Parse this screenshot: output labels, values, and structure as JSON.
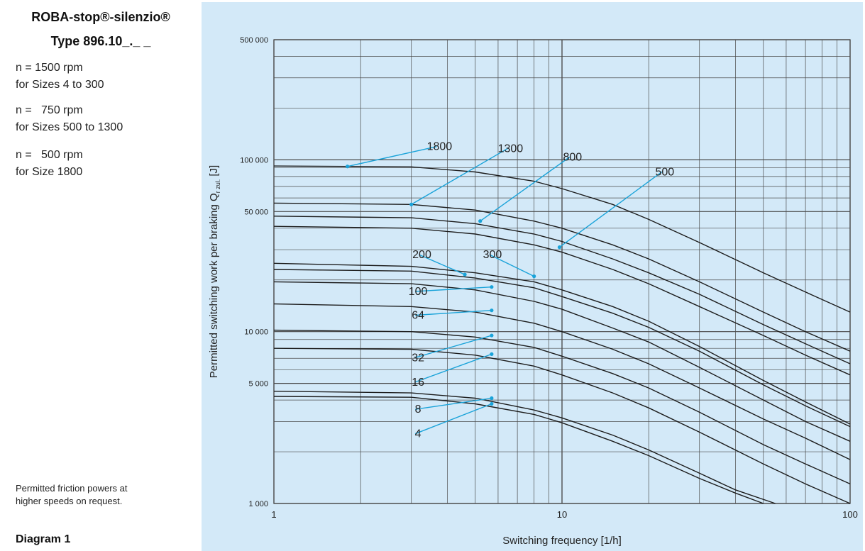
{
  "sidebar": {
    "title": "ROBA-stop®-silenzio®",
    "subtitle": "Type 896.10_._ _",
    "speed_notes": [
      {
        "speed": "n = 1500 rpm",
        "sizes": "for Sizes 4 to 300"
      },
      {
        "speed": "n =   750 rpm",
        "sizes": "for Sizes 500 to 1300"
      },
      {
        "speed": "n =   500 rpm",
        "sizes": "for Size 1800"
      }
    ],
    "note_line1": "Permitted friction powers at",
    "note_line2": "higher speeds on request.",
    "diagram_label": "Diagram 1"
  },
  "colors": {
    "background": "#d3e9f8",
    "grid": "#4a4a4a",
    "curve": "#1c1c1c",
    "leader": "#1aa3d9"
  },
  "chart_data": {
    "type": "line",
    "xscale": "log",
    "yscale": "log",
    "xlim": [
      1,
      100
    ],
    "ylim": [
      1000,
      500000
    ],
    "xlabel": "Switching frequency [1/h]",
    "ylabel": "Permitted switching work per braking Q",
    "ylabel_sub": "r zul.",
    "ylabel_unit": " [J]",
    "x_ticks": [
      {
        "v": 1,
        "label": "1"
      },
      {
        "v": 10,
        "label": "10"
      },
      {
        "v": 100,
        "label": "100"
      }
    ],
    "y_ticks": [
      {
        "v": 500000,
        "label": "500 000"
      },
      {
        "v": 100000,
        "label": "100 000"
      },
      {
        "v": 50000,
        "label": "50 000"
      },
      {
        "v": 10000,
        "label": "10 000"
      },
      {
        "v": 5000,
        "label": "5 000"
      },
      {
        "v": 1000,
        "label": "1 000"
      }
    ],
    "grid": true,
    "series": [
      {
        "name": "1800",
        "x": [
          1,
          3,
          5,
          8,
          10,
          15,
          20,
          30,
          50,
          70,
          100
        ],
        "y": [
          92000,
          91000,
          85000,
          75000,
          68000,
          55000,
          45000,
          33000,
          22000,
          17000,
          13000
        ]
      },
      {
        "name": "1300",
        "x": [
          1,
          3,
          5,
          8,
          10,
          15,
          20,
          30,
          50,
          70,
          100
        ],
        "y": [
          56000,
          55000,
          51000,
          44000,
          40000,
          32000,
          26500,
          19500,
          13000,
          10000,
          7700
        ]
      },
      {
        "name": "800",
        "x": [
          1,
          3,
          5,
          8,
          10,
          15,
          20,
          30,
          50,
          70,
          100
        ],
        "y": [
          47000,
          46000,
          42500,
          37000,
          33500,
          26500,
          22000,
          16500,
          11000,
          8500,
          6500
        ]
      },
      {
        "name": "500",
        "x": [
          1,
          3,
          5,
          8,
          10,
          15,
          20,
          30,
          50,
          70,
          100
        ],
        "y": [
          41000,
          40000,
          37000,
          32000,
          29000,
          23000,
          19000,
          14000,
          9500,
          7300,
          5600
        ]
      },
      {
        "name": "300",
        "x": [
          1,
          3,
          5,
          8,
          10,
          15,
          20,
          30,
          50,
          70,
          100
        ],
        "y": [
          25000,
          24000,
          22000,
          19500,
          17500,
          14000,
          11500,
          8200,
          5200,
          3900,
          2900
        ]
      },
      {
        "name": "200",
        "x": [
          1,
          3,
          5,
          8,
          10,
          15,
          20,
          30,
          50,
          70,
          100
        ],
        "y": [
          23000,
          22500,
          20500,
          18000,
          16000,
          12800,
          10600,
          7700,
          4900,
          3700,
          2800
        ]
      },
      {
        "name": "100",
        "x": [
          1,
          3,
          5,
          8,
          10,
          15,
          20,
          30,
          50,
          70,
          100
        ],
        "y": [
          19500,
          19000,
          17500,
          15000,
          13500,
          10500,
          8700,
          6200,
          4000,
          3000,
          2300
        ]
      },
      {
        "name": "64",
        "x": [
          1,
          3,
          5,
          8,
          10,
          15,
          20,
          30,
          50,
          70,
          100
        ],
        "y": [
          14500,
          14000,
          13000,
          11200,
          10000,
          7900,
          6500,
          4700,
          3100,
          2400,
          1800
        ]
      },
      {
        "name": "32",
        "x": [
          1,
          3,
          5,
          8,
          10,
          15,
          20,
          30,
          50,
          70,
          100
        ],
        "y": [
          10200,
          10000,
          9300,
          8100,
          7200,
          5700,
          4700,
          3400,
          2200,
          1700,
          1300
        ]
      },
      {
        "name": "16",
        "x": [
          1,
          3,
          5,
          8,
          10,
          15,
          20,
          30,
          50,
          70,
          100
        ],
        "y": [
          8000,
          7900,
          7300,
          6300,
          5600,
          4400,
          3600,
          2600,
          1700,
          1300,
          1000
        ]
      },
      {
        "name": "8",
        "x": [
          1,
          3,
          5,
          8,
          10,
          15,
          20,
          30,
          40,
          55
        ],
        "y": [
          4500,
          4400,
          4100,
          3500,
          3150,
          2500,
          2050,
          1500,
          1200,
          1000
        ]
      },
      {
        "name": "4",
        "x": [
          1,
          3,
          5,
          8,
          10,
          15,
          20,
          30,
          40,
          50
        ],
        "y": [
          4200,
          4150,
          3800,
          3300,
          2950,
          2300,
          1900,
          1400,
          1150,
          1000
        ]
      }
    ],
    "annotations": [
      {
        "label": "1800",
        "point_x": 1.8,
        "point_y": 91500,
        "text_x": 3.8,
        "text_y": 115000
      },
      {
        "label": "1300",
        "point_x": 3.0,
        "point_y": 55000,
        "text_x": 6.7,
        "text_y": 112000
      },
      {
        "label": "800",
        "point_x": 5.2,
        "point_y": 44000,
        "text_x": 11.0,
        "text_y": 100000
      },
      {
        "label": "500",
        "point_x": 9.8,
        "point_y": 31000,
        "text_x": 23.0,
        "text_y": 82000
      },
      {
        "label": "200",
        "point_x": 4.6,
        "point_y": 21500,
        "text_x": 3.3,
        "text_y": 27000
      },
      {
        "label": "300",
        "point_x": 8.0,
        "point_y": 21000,
        "text_x": 5.8,
        "text_y": 27000
      },
      {
        "label": "100",
        "point_x": 5.7,
        "point_y": 18200,
        "text_x": 3.2,
        "text_y": 16500
      },
      {
        "label": "64",
        "point_x": 5.7,
        "point_y": 13300,
        "text_x": 3.2,
        "text_y": 12000
      },
      {
        "label": "32",
        "point_x": 5.7,
        "point_y": 9500,
        "text_x": 3.2,
        "text_y": 6800
      },
      {
        "label": "16",
        "point_x": 5.7,
        "point_y": 7400,
        "text_x": 3.2,
        "text_y": 4900
      },
      {
        "label": "8",
        "point_x": 5.7,
        "point_y": 4100,
        "text_x": 3.2,
        "text_y": 3400
      },
      {
        "label": "4",
        "point_x": 5.7,
        "point_y": 3800,
        "text_x": 3.2,
        "text_y": 2450
      }
    ]
  }
}
